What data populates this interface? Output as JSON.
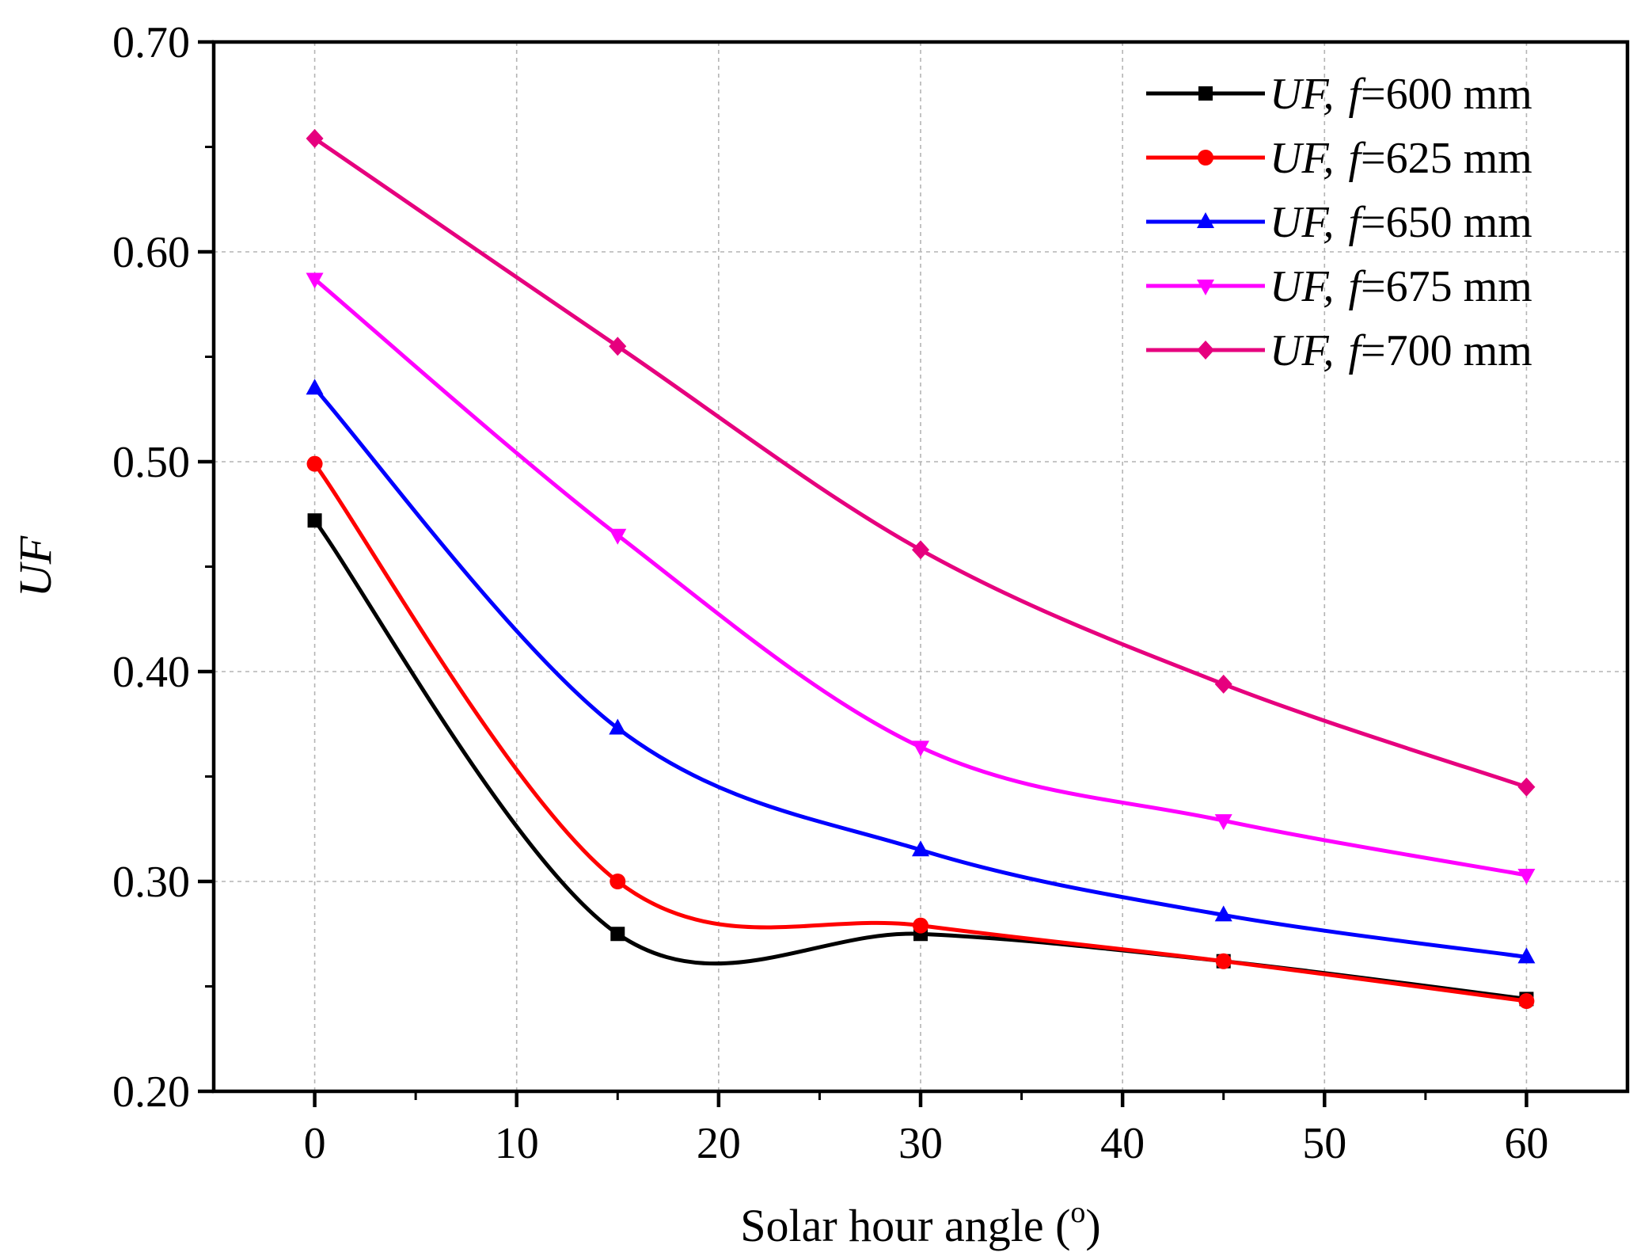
{
  "chart_data": {
    "type": "line",
    "title": "",
    "xlabel": "Solar hour angle (°)",
    "xlabel_main": "Solar hour angle (",
    "xlabel_sup": "o",
    "xlabel_close": ")",
    "ylabel": "UF",
    "xlim": [
      -5,
      65
    ],
    "ylim": [
      0.2,
      0.7
    ],
    "x_ticks": [
      0,
      10,
      20,
      30,
      40,
      50,
      60
    ],
    "x_tick_labels": [
      "0",
      "10",
      "20",
      "30",
      "40",
      "50",
      "60"
    ],
    "y_ticks": [
      0.2,
      0.3,
      0.4,
      0.5,
      0.6,
      0.7
    ],
    "y_tick_labels": [
      "0.20",
      "0.30",
      "0.40",
      "0.50",
      "0.60",
      "0.70"
    ],
    "grid": true,
    "legend_position": "top-right",
    "x": [
      0,
      15,
      30,
      45,
      60
    ],
    "series": [
      {
        "name": "UF, f=600 mm",
        "label_prefix": "UF,",
        "label_var": "f",
        "label_suffix": "=600 mm",
        "color": "#000000",
        "marker": "square",
        "values": [
          0.472,
          0.275,
          0.275,
          0.262,
          0.244
        ]
      },
      {
        "name": "UF, f=625 mm",
        "label_prefix": "UF,",
        "label_var": "f",
        "label_suffix": "=625 mm",
        "color": "#ff0000",
        "marker": "circle",
        "values": [
          0.499,
          0.3,
          0.279,
          0.262,
          0.243
        ]
      },
      {
        "name": "UF, f=650 mm",
        "label_prefix": "UF,",
        "label_var": "f",
        "label_suffix": "=650 mm",
        "color": "#0000ff",
        "marker": "triangle-up",
        "values": [
          0.535,
          0.373,
          0.315,
          0.284,
          0.264
        ]
      },
      {
        "name": "UF, f=675 mm",
        "label_prefix": "UF,",
        "label_var": "f",
        "label_suffix": "=675 mm",
        "color": "#ff00ff",
        "marker": "triangle-down",
        "values": [
          0.587,
          0.465,
          0.364,
          0.329,
          0.303
        ]
      },
      {
        "name": "UF, f=700 mm",
        "label_prefix": "UF,",
        "label_var": "f",
        "label_suffix": "=700 mm",
        "color": "#e6007e",
        "marker": "diamond",
        "values": [
          0.654,
          0.555,
          0.458,
          0.394,
          0.345
        ]
      }
    ]
  }
}
